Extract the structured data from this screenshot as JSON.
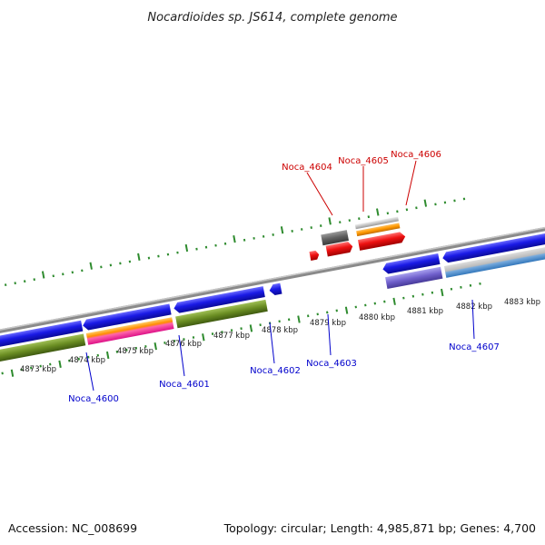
{
  "title": "Nocardioides sp. JS614, complete genome",
  "footer": {
    "accession": "Accession: NC_008699",
    "summary": "Topology: circular; Length: 4,985,871 bp; Genes: 4,700"
  },
  "colors": {
    "backbone": "#8a8a8a",
    "ticks": "#2e8b2e",
    "forward_label": "#cc0000",
    "reverse_label": "#0000cc",
    "blue_gene": "#1515e0",
    "red_gene": "#ee1111",
    "olive_feature": "#6b8e23",
    "pink_gene": "#f08080"
  },
  "kbp_labels": [
    "4873 kbp",
    "4874 kbp",
    "4875 kbp",
    "4876 kbp",
    "4877 kbp",
    "4878 kbp",
    "4879 kbp",
    "4880 kbp",
    "4881 kbp",
    "4882 kbp",
    "4883 kbp"
  ],
  "gene_labels_top": [
    "Noca_4604",
    "Noca_4605",
    "Noca_4606"
  ],
  "gene_labels_bottom": [
    "Noca_4600",
    "Noca_4601",
    "Noca_4602",
    "Noca_4603",
    "Noca_4607"
  ]
}
